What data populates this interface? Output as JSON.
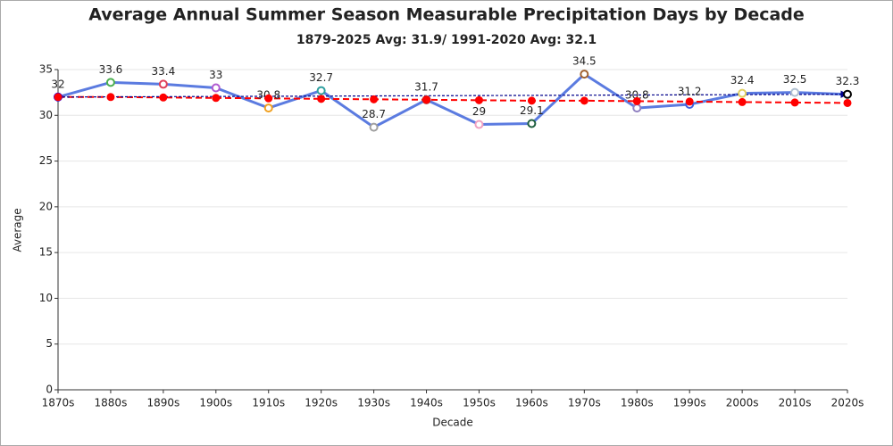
{
  "chart_data": {
    "type": "line",
    "title": "Average Annual Summer Season Measurable Precipitation Days by Decade",
    "subtitle": "1879-2025 Avg: 31.9/ 1991-2020 Avg: 32.1",
    "x_label": "Decade",
    "y_label": "Average",
    "categories": [
      "1870s",
      "1880s",
      "1890s",
      "1900s",
      "1910s",
      "1920s",
      "1930s",
      "1940s",
      "1950s",
      "1960s",
      "1970s",
      "1980s",
      "1990s",
      "2000s",
      "2010s",
      "2020s"
    ],
    "series": [
      {
        "color": "#5b7be0",
        "values": [
          32,
          33.6,
          33.4,
          33,
          30.8,
          32.7,
          28.7,
          31.7,
          29,
          29.1,
          34.5,
          30.8,
          31.2,
          32.4,
          32.5,
          32.3
        ],
        "marker_colors": [
          "#0000ff",
          "#4caf50",
          "#e0405a",
          "#b05ad0",
          "#f0a020",
          "#30a0a0",
          "#a0a0a0",
          "#a04040",
          "#f0a0c0",
          "#206040",
          "#a06030",
          "#9080c0",
          "#4060e0",
          "#e0d060",
          "#b0c0d0",
          "#000000"
        ],
        "data_labels": true
      },
      {
        "color": "#ff0000",
        "dashed": true,
        "values": [
          32.0,
          32.0,
          31.95,
          31.9,
          31.85,
          31.8,
          31.75,
          31.7,
          31.65,
          31.6,
          31.6,
          31.55,
          31.5,
          31.45,
          31.4,
          31.35
        ]
      }
    ],
    "arrow": {
      "color": "#00008b",
      "from": 32,
      "to": 32.3
    },
    "ylim": [
      0,
      35
    ],
    "yticks": [
      0,
      5,
      10,
      15,
      20,
      25,
      30,
      35
    ],
    "grid": true
  }
}
